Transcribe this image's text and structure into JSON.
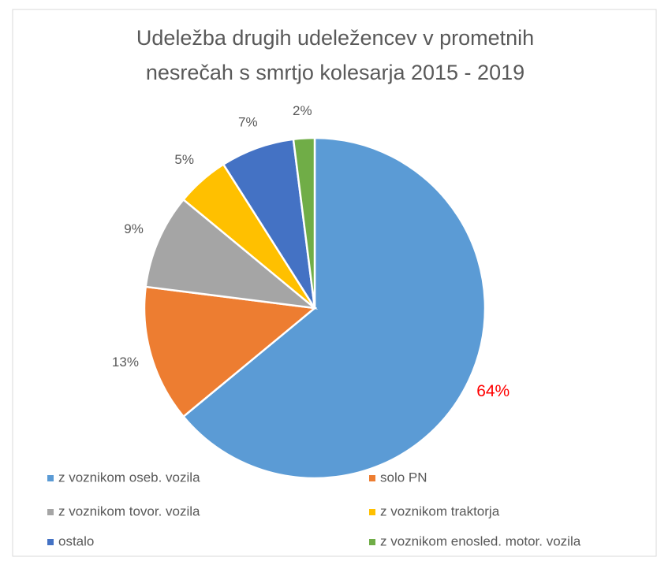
{
  "chart_data": {
    "type": "pie",
    "title": [
      "Udeležba drugih udeležencev v prometnih",
      "nesrečah s smrtjo kolesarja 2015 - 2019"
    ],
    "categories": [
      "z voznikom oseb. vozila",
      "solo PN",
      "z voznikom tovor. vozila",
      "z voznikom traktorja",
      "ostalo",
      "z voznikom enosled. motor. vozila"
    ],
    "values": [
      64,
      13,
      9,
      5,
      7,
      2
    ],
    "value_labels": [
      "64%",
      "13%",
      "9%",
      "5%",
      "7%",
      "2%"
    ],
    "colors": [
      "#5b9bd5",
      "#ed7d31",
      "#a5a5a5",
      "#ffc000",
      "#4472c4",
      "#70ad47"
    ],
    "label_colors": [
      "#ff0000",
      "#595959",
      "#595959",
      "#595959",
      "#595959",
      "#595959"
    ],
    "legend": "bottom"
  }
}
